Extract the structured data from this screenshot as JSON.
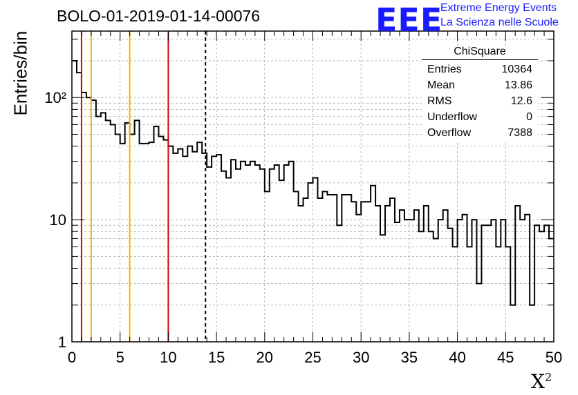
{
  "header": {
    "title": "BOLO-01-2019-01-14-00076",
    "logo_text": "EEE",
    "brand_line1": "Extreme Energy Events",
    "brand_line2": "La Scienza nelle Scuole"
  },
  "stats_box": {
    "name": "ChiSquare",
    "rows": [
      {
        "label": "Entries",
        "value": "10364"
      },
      {
        "label": "Mean",
        "value": "13.86"
      },
      {
        "label": "RMS",
        "value": "12.6"
      },
      {
        "label": "Underflow",
        "value": "0"
      },
      {
        "label": "Overflow",
        "value": "7388"
      }
    ]
  },
  "colors": {
    "histogram": "#000000",
    "red_line": "#dd0000",
    "yellow_line": "#f0b400",
    "mean_line": "#000000",
    "grid": "#a0a0a0",
    "brand": "#1a1aff"
  },
  "chart_data": {
    "type": "histogram",
    "title": "BOLO-01-2019-01-14-00076",
    "xlabel": "X²",
    "ylabel": "Entries/bin",
    "xlim": [
      0,
      50
    ],
    "ylim": [
      1,
      350
    ],
    "yscale": "log",
    "grid": true,
    "x_tick_labels": [
      "0",
      "5",
      "10",
      "15",
      "20",
      "25",
      "30",
      "35",
      "40",
      "45",
      "50"
    ],
    "y_tick_labels": [
      "1",
      "10",
      "10²"
    ],
    "bin_width": 0.5,
    "values": [
      200,
      160,
      110,
      100,
      95,
      70,
      75,
      65,
      60,
      50,
      42,
      62,
      50,
      65,
      42,
      42,
      43,
      58,
      48,
      45,
      40,
      35,
      38,
      33,
      40,
      36,
      43,
      35,
      27,
      33,
      34,
      25,
      22,
      31,
      26,
      30,
      28,
      30,
      28,
      26,
      17,
      26,
      28,
      21,
      28,
      30,
      17,
      13,
      15,
      20,
      22,
      15,
      17,
      16,
      16,
      9,
      16,
      16,
      14,
      11,
      14,
      14,
      19,
      13,
      7.5,
      13,
      15,
      9.5,
      12,
      10,
      10,
      12,
      8,
      13,
      8,
      7,
      10,
      12,
      8.5,
      6,
      10,
      11,
      6,
      10,
      3,
      9,
      9,
      10,
      6,
      10,
      6,
      2,
      13,
      10,
      11,
      2,
      9,
      8,
      9,
      7
    ],
    "vertical_lines": [
      {
        "x": 1,
        "color": "red"
      },
      {
        "x": 10,
        "color": "red"
      },
      {
        "x": 2,
        "color": "yellow"
      },
      {
        "x": 6,
        "color": "yellow"
      },
      {
        "x": 13.86,
        "color": "black-dashed"
      }
    ],
    "stats": {
      "Entries": 10364,
      "Mean": 13.86,
      "RMS": 12.6,
      "Underflow": 0,
      "Overflow": 7388
    }
  }
}
